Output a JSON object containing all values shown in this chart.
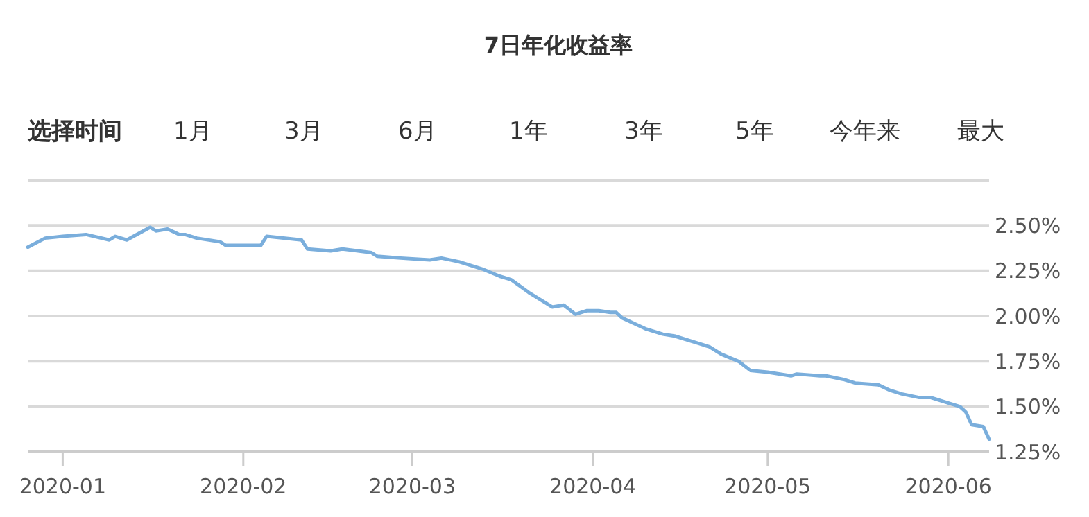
{
  "chart_data": {
    "type": "line",
    "title": "7日年化收益率",
    "annotations": [
      "选择时间",
      "1月",
      "3月",
      "6月",
      "1年",
      "3年",
      "5年",
      "今年来",
      "最大"
    ],
    "x": [
      "2019-12-26",
      "2019-12-29",
      "2020-01-01",
      "2020-01-05",
      "2020-01-09",
      "2020-01-10",
      "2020-01-12",
      "2020-01-16",
      "2020-01-17",
      "2020-01-19",
      "2020-01-21",
      "2020-01-22",
      "2020-01-24",
      "2020-01-28",
      "2020-01-29",
      "2020-02-04",
      "2020-02-05",
      "2020-02-11",
      "2020-02-12",
      "2020-02-16",
      "2020-02-18",
      "2020-02-23",
      "2020-02-24",
      "2020-02-28",
      "2020-03-04",
      "2020-03-06",
      "2020-03-09",
      "2020-03-13",
      "2020-03-16",
      "2020-03-18",
      "2020-03-21",
      "2020-03-24",
      "2020-03-25",
      "2020-03-27",
      "2020-03-29",
      "2020-03-31",
      "2020-04-02",
      "2020-04-04",
      "2020-04-05",
      "2020-04-06",
      "2020-04-08",
      "2020-04-10",
      "2020-04-13",
      "2020-04-15",
      "2020-04-19",
      "2020-04-21",
      "2020-04-23",
      "2020-04-26",
      "2020-04-28",
      "2020-05-01",
      "2020-05-05",
      "2020-05-06",
      "2020-05-10",
      "2020-05-11",
      "2020-05-14",
      "2020-05-16",
      "2020-05-20",
      "2020-05-22",
      "2020-05-24",
      "2020-05-27",
      "2020-05-29",
      "2020-05-31",
      "2020-06-03",
      "2020-06-04",
      "2020-06-05",
      "2020-06-07",
      "2020-06-08"
    ],
    "series": [
      {
        "color": "#7aaedc",
        "values": [
          2.38,
          2.43,
          2.44,
          2.45,
          2.42,
          2.44,
          2.42,
          2.49,
          2.47,
          2.48,
          2.45,
          2.45,
          2.43,
          2.41,
          2.39,
          2.39,
          2.44,
          2.42,
          2.37,
          2.36,
          2.37,
          2.35,
          2.33,
          2.32,
          2.31,
          2.32,
          2.3,
          2.26,
          2.22,
          2.2,
          2.13,
          2.07,
          2.05,
          2.06,
          2.01,
          2.03,
          2.03,
          2.02,
          2.02,
          1.99,
          1.96,
          1.93,
          1.9,
          1.89,
          1.85,
          1.83,
          1.79,
          1.75,
          1.7,
          1.69,
          1.67,
          1.68,
          1.67,
          1.67,
          1.65,
          1.63,
          1.62,
          1.59,
          1.57,
          1.55,
          1.55,
          1.53,
          1.5,
          1.47,
          1.4,
          1.39,
          1.32
        ]
      }
    ],
    "xlim": [
      "2019-12-26",
      "2020-06-08"
    ],
    "xticks": [
      {
        "value": "2020-01-01",
        "label": "2020-01"
      },
      {
        "value": "2020-02-01",
        "label": "2020-02"
      },
      {
        "value": "2020-03-01",
        "label": "2020-03"
      },
      {
        "value": "2020-04-01",
        "label": "2020-04"
      },
      {
        "value": "2020-05-01",
        "label": "2020-05"
      },
      {
        "value": "2020-06-01",
        "label": "2020-06"
      }
    ],
    "ylim": [
      1.25,
      2.75
    ],
    "yticks": [
      {
        "value": 1.25,
        "label": "1.25%"
      },
      {
        "value": 1.5,
        "label": "1.50%"
      },
      {
        "value": 1.75,
        "label": "1.75%"
      },
      {
        "value": 2.0,
        "label": "2.00%"
      },
      {
        "value": 2.25,
        "label": "2.25%"
      },
      {
        "value": 2.5,
        "label": "2.50%"
      },
      {
        "value": 2.75,
        "label": null
      }
    ],
    "grid": "y",
    "marker": "none",
    "line_style": "solid"
  }
}
